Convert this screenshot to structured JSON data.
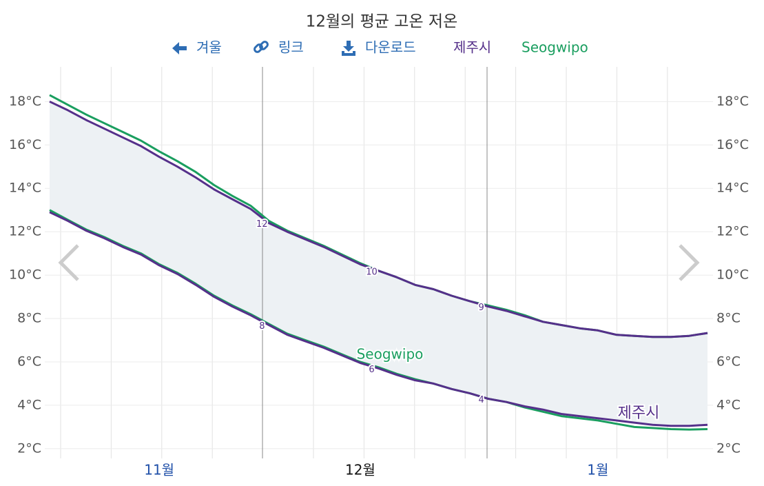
{
  "chart_data": {
    "type": "band-line",
    "title": "12월의 평균 고온 저온",
    "nav": [
      "겨울",
      "링크",
      "다운로드"
    ],
    "categories": [
      null,
      null,
      null,
      null,
      null,
      null,
      "11월",
      null,
      null,
      null,
      null,
      null,
      null,
      null,
      null,
      null,
      null,
      "12월",
      null,
      null,
      null,
      null,
      null,
      null,
      null,
      null,
      null,
      null,
      null,
      null,
      "1월",
      null,
      null,
      null,
      null,
      null,
      null
    ],
    "ylim": [
      1.55,
      19.6
    ],
    "yticks": [
      {
        "value": 2,
        "label": "2°C"
      },
      {
        "value": 4,
        "label": "4°C"
      },
      {
        "value": 6,
        "label": "6°C"
      },
      {
        "value": 8,
        "label": "8°C"
      },
      {
        "value": 10,
        "label": "10°C"
      },
      {
        "value": 12,
        "label": "12°C"
      },
      {
        "value": 14,
        "label": "14°C"
      },
      {
        "value": 16,
        "label": "16°C"
      },
      {
        "value": 18,
        "label": "18°C"
      }
    ],
    "y2lim": [
      1.55,
      19.6
    ],
    "y2ticks": [
      {
        "value": 2,
        "label": "2°C"
      },
      {
        "value": 4,
        "label": "4°C"
      },
      {
        "value": 6,
        "label": "6°C"
      },
      {
        "value": 8,
        "label": "8°C"
      },
      {
        "value": 10,
        "label": "10°C"
      },
      {
        "value": 12,
        "label": "12°C"
      },
      {
        "value": 14,
        "label": "14°C"
      },
      {
        "value": 16,
        "label": "16°C"
      },
      {
        "value": 18,
        "label": "18°C"
      }
    ],
    "grid": true,
    "series": [
      {
        "name": "제주시",
        "color": "#55308a",
        "band": true,
        "high": [
          18.0,
          17.6,
          17.15,
          16.75,
          16.35,
          15.95,
          15.45,
          15.0,
          14.5,
          13.95,
          13.5,
          13.05,
          12.4,
          12.0,
          11.65,
          11.3,
          10.9,
          10.5,
          10.2,
          9.9,
          9.55,
          9.35,
          9.05,
          8.8,
          8.55,
          8.35,
          8.1,
          7.85,
          7.7,
          7.55,
          7.45,
          7.25,
          7.2,
          7.15,
          7.15,
          7.2,
          7.33
        ],
        "low": [
          12.9,
          12.5,
          12.05,
          11.7,
          11.3,
          10.95,
          10.45,
          10.05,
          9.55,
          9.0,
          8.55,
          8.15,
          7.7,
          7.25,
          6.95,
          6.65,
          6.3,
          5.95,
          5.7,
          5.4,
          5.15,
          5.0,
          4.75,
          4.55,
          4.3,
          4.15,
          3.95,
          3.8,
          3.6,
          3.5,
          3.4,
          3.3,
          3.2,
          3.1,
          3.05,
          3.05,
          3.1
        ],
        "high_labels": [
          null,
          null,
          null,
          null,
          null,
          null,
          null,
          null,
          null,
          null,
          null,
          null,
          "12",
          null,
          null,
          null,
          null,
          null,
          "10",
          null,
          null,
          null,
          null,
          null,
          "9",
          null,
          null,
          null,
          null,
          null,
          null,
          null,
          null,
          null,
          null,
          null,
          null
        ],
        "low_labels": [
          null,
          null,
          null,
          null,
          null,
          null,
          null,
          null,
          null,
          null,
          null,
          null,
          "8",
          null,
          null,
          null,
          null,
          null,
          "6",
          null,
          null,
          null,
          null,
          null,
          "4",
          null,
          null,
          null,
          null,
          null,
          null,
          null,
          null,
          null,
          null,
          null,
          null
        ]
      },
      {
        "name": "Seogwipo",
        "color": "#1a9e5f",
        "band": false,
        "high": [
          18.3,
          17.85,
          17.4,
          17.0,
          16.6,
          16.2,
          15.7,
          15.25,
          14.75,
          14.15,
          13.65,
          13.2,
          12.5,
          12.05,
          11.7,
          11.35,
          10.95,
          10.55,
          10.2,
          9.9,
          9.55,
          9.35,
          9.05,
          8.8,
          8.6,
          8.4,
          8.15,
          7.85,
          7.7,
          7.55,
          7.45,
          7.25,
          7.2,
          7.15,
          7.15,
          7.2,
          7.33
        ],
        "low": [
          13.0,
          12.55,
          12.1,
          11.75,
          11.35,
          11.0,
          10.5,
          10.1,
          9.6,
          9.05,
          8.6,
          8.2,
          7.75,
          7.3,
          7.0,
          6.7,
          6.35,
          6.0,
          5.75,
          5.45,
          5.2,
          5.0,
          4.75,
          4.55,
          4.3,
          4.15,
          3.9,
          3.7,
          3.5,
          3.4,
          3.3,
          3.15,
          3.0,
          2.95,
          2.9,
          2.88,
          2.9
        ]
      }
    ]
  }
}
